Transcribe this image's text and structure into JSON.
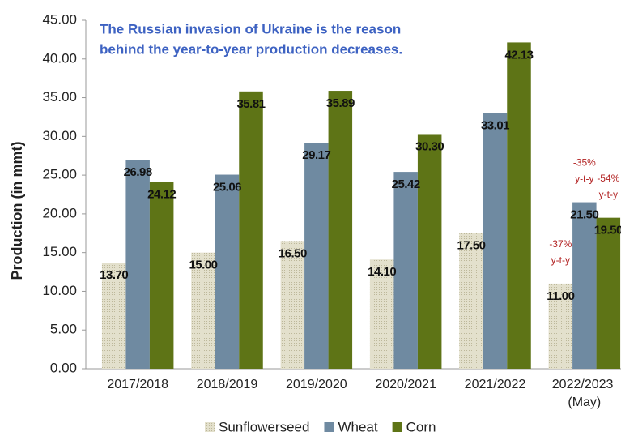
{
  "chart_data": {
    "type": "bar",
    "note_lines": [
      "The Russian invasion of Ukraine is the reason",
      "behind the year-to-year production decreases."
    ],
    "y_label": "Production (in mmt)",
    "categories": [
      "2017/2018",
      "2018/2019",
      "2019/2020",
      "2020/2021",
      "2021/2022",
      "2022/2023 (May)"
    ],
    "series": [
      {
        "name": "Sunflowerseed",
        "color": "#d6d2b8",
        "values": [
          13.7,
          15,
          16.5,
          14.1,
          17.5,
          11
        ],
        "value_labels": [
          "13.70",
          "15.00",
          "16.50",
          "14.10",
          "17.50",
          "11.00"
        ]
      },
      {
        "name": "Wheat",
        "color": "#6f8aa1",
        "values": [
          26.98,
          25.06,
          29.17,
          25.42,
          33.01,
          21.5
        ],
        "value_labels": [
          "26.98",
          "25.06",
          "29.17",
          "25.42",
          "33.01",
          "21.50"
        ]
      },
      {
        "name": "Corn",
        "color": "#5e7416",
        "values": [
          24.12,
          35.81,
          35.89,
          30.3,
          42.13,
          19.5
        ],
        "value_labels": [
          "24.12",
          "35.81",
          "35.89",
          "30.30",
          "42.13",
          "19.50"
        ]
      }
    ],
    "change_labels": [
      {
        "series": 0,
        "lines": [
          "-37%",
          "y-t-y"
        ]
      },
      {
        "series": 1,
        "lines": [
          "-35%",
          "y-t-y"
        ]
      },
      {
        "series": 2,
        "lines": [
          "-54%",
          "y-t-y"
        ]
      }
    ],
    "ylim": [
      0,
      45
    ],
    "yticks": [
      {
        "value": 0,
        "label": "0.00"
      },
      {
        "value": 5,
        "label": "5.00"
      },
      {
        "value": 10,
        "label": "10.00"
      },
      {
        "value": 15,
        "label": "15.00"
      },
      {
        "value": 20,
        "label": "20.00"
      },
      {
        "value": 25,
        "label": "25.00"
      },
      {
        "value": 30,
        "label": "30.00"
      },
      {
        "value": 35,
        "label": "35.00"
      },
      {
        "value": 40,
        "label": "40.00"
      },
      {
        "value": 45,
        "label": "45.00"
      }
    ],
    "legend": "bottom"
  }
}
